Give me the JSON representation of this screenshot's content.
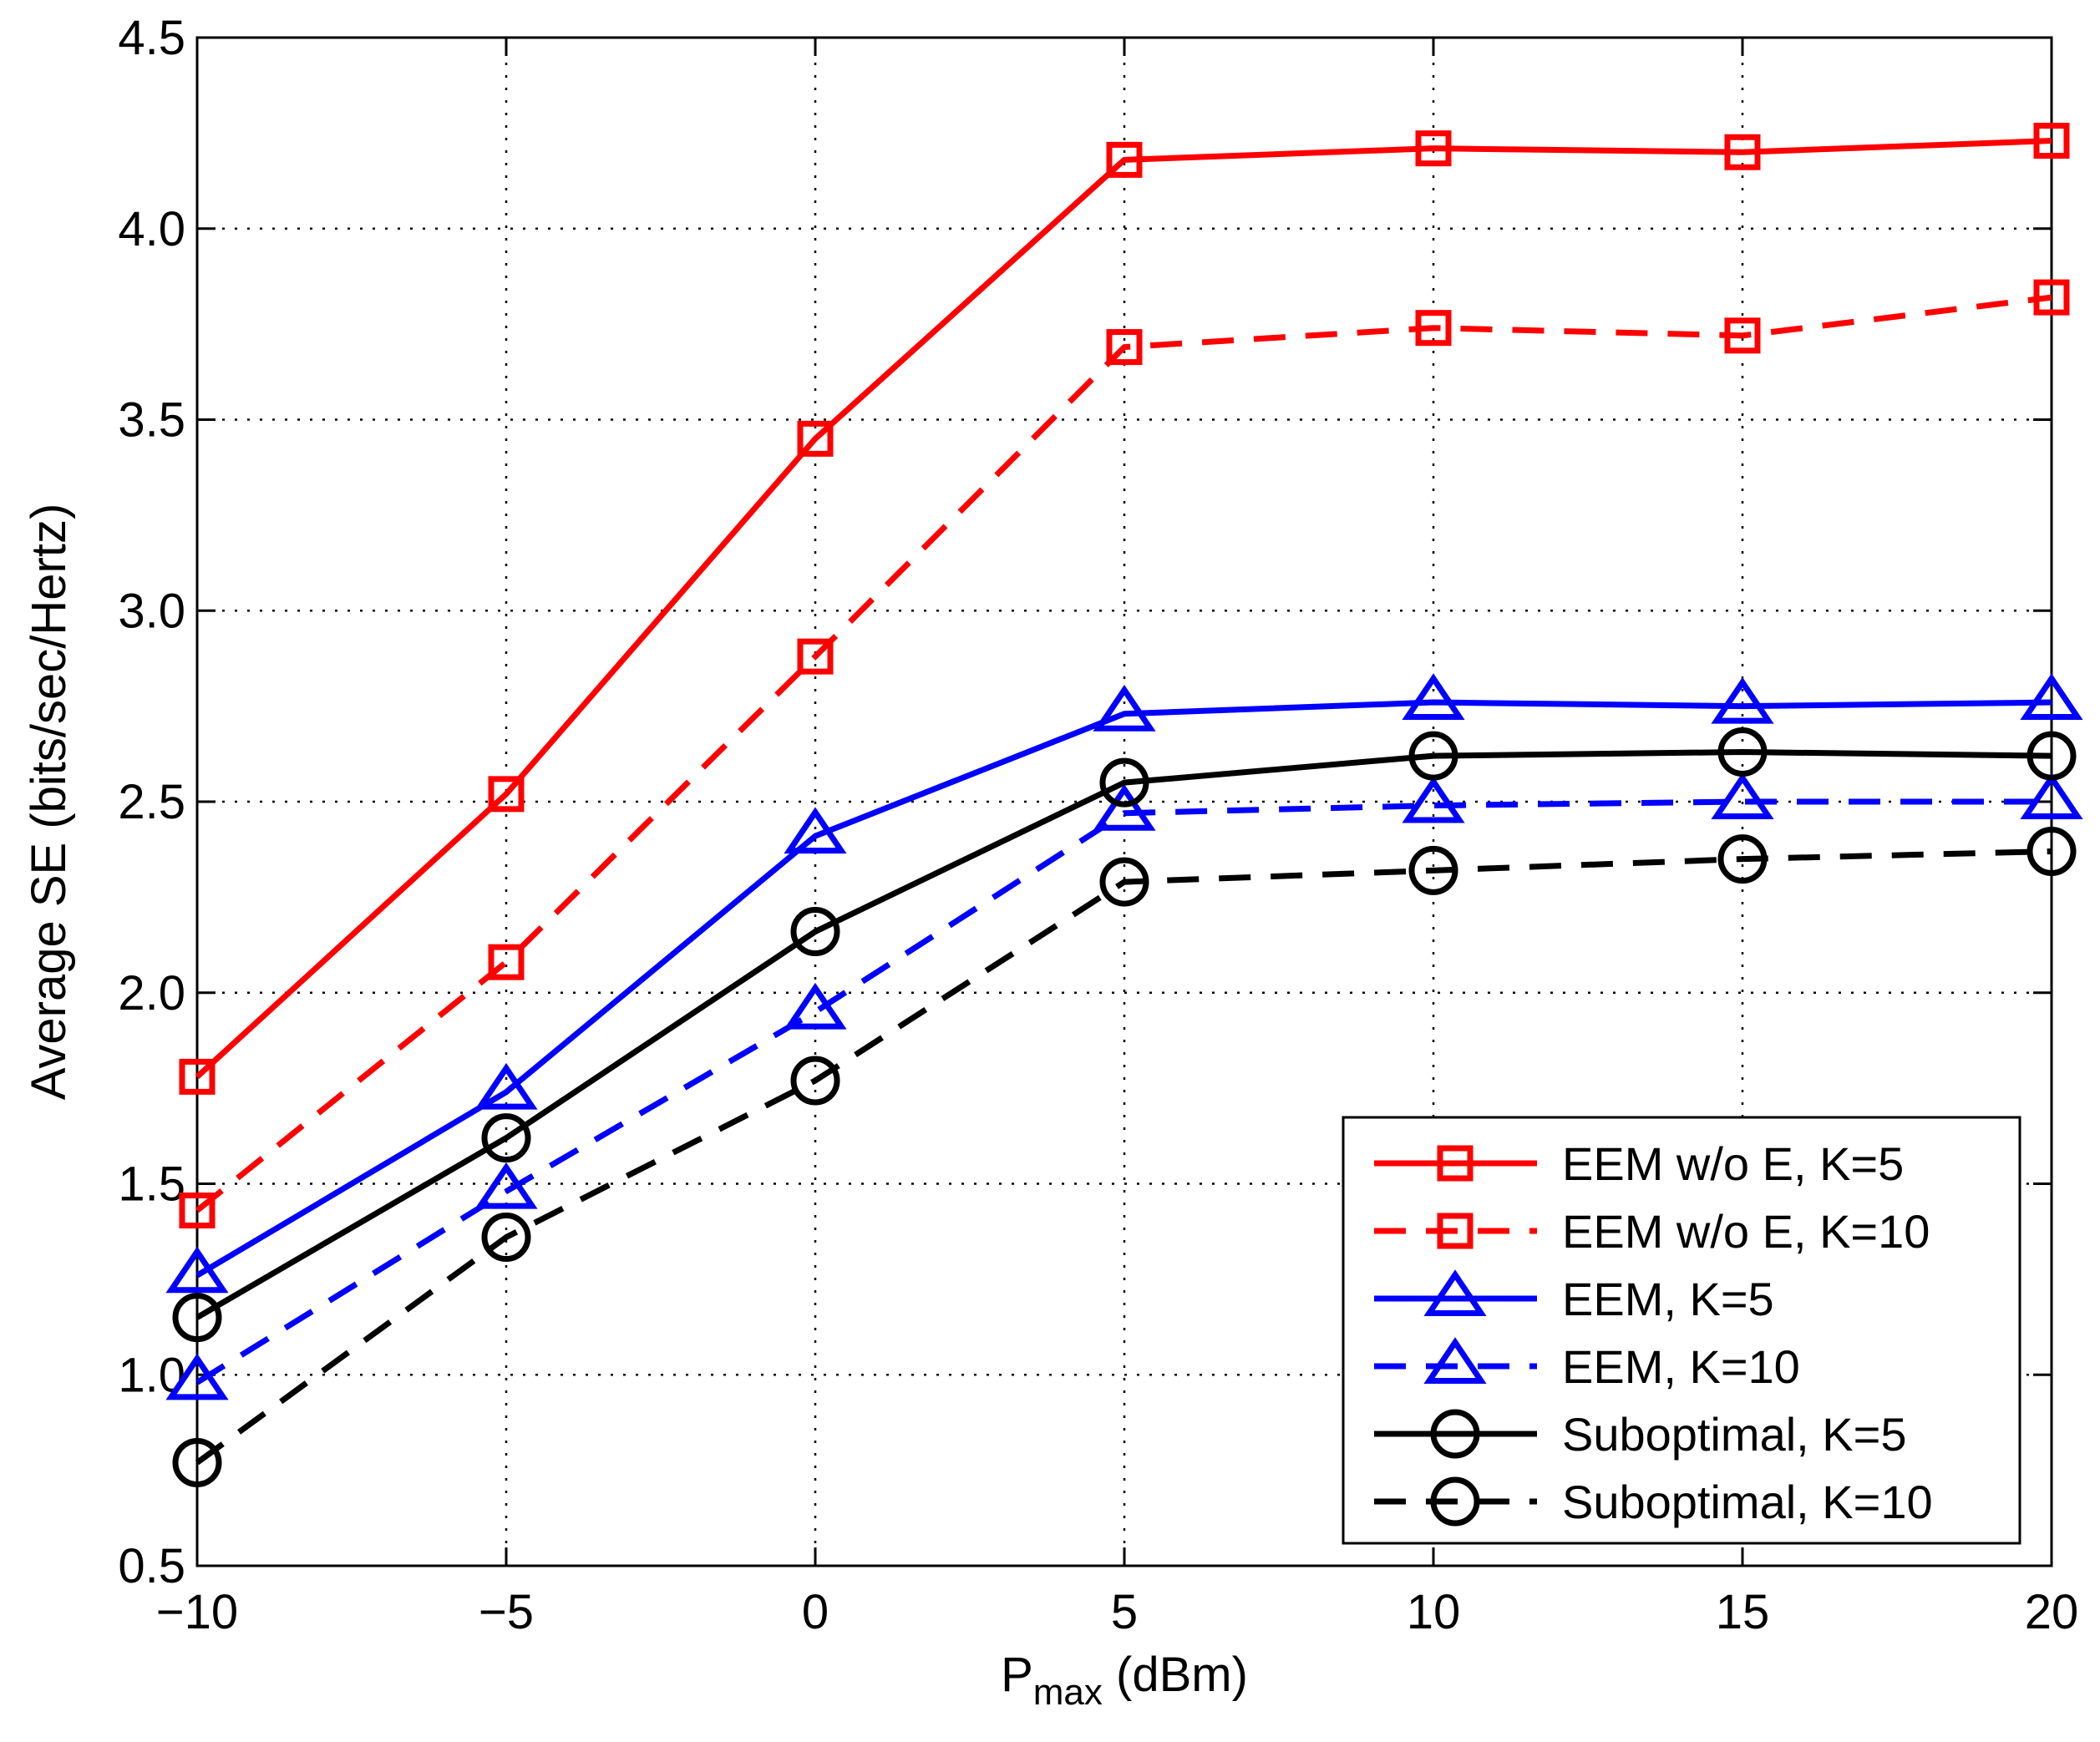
{
  "chart_data": {
    "type": "line",
    "title": "",
    "xlabel": "P",
    "xlabel_sub": "max",
    "xlabel_unit": " (dBm)",
    "ylabel": "Average SE (bits/sec/Hertz)",
    "xlim": [
      -10,
      20
    ],
    "ylim": [
      0.5,
      4.5
    ],
    "grid": true,
    "legend_position": "bottom-right",
    "x": [
      -10,
      -5,
      0,
      5,
      10,
      15,
      20
    ],
    "xticks": [
      "−10",
      "−5",
      "0",
      "5",
      "10",
      "15",
      "20"
    ],
    "yticks": [
      "0.5",
      "1.0",
      "1.5",
      "2.0",
      "2.5",
      "3.0",
      "3.5",
      "4.0",
      "4.5"
    ],
    "series": [
      {
        "name": "EEM w/o E, K=5",
        "color": "#ff0000",
        "dash": "solid",
        "marker": "square",
        "values": [
          1.78,
          2.52,
          3.45,
          4.18,
          4.21,
          4.2,
          4.23
        ]
      },
      {
        "name": "EEM w/o E, K=10",
        "color": "#ff0000",
        "dash": "dashed",
        "marker": "square",
        "values": [
          1.43,
          2.08,
          2.88,
          3.69,
          3.74,
          3.72,
          3.82
        ]
      },
      {
        "name": "EEM, K=5",
        "color": "#0000ff",
        "dash": "solid",
        "marker": "triangle",
        "values": [
          1.26,
          1.74,
          2.41,
          2.73,
          2.76,
          2.75,
          2.76
        ]
      },
      {
        "name": "EEM, K=10",
        "color": "#0000ff",
        "dash": "dashed",
        "marker": "triangle",
        "values": [
          0.98,
          1.48,
          1.95,
          2.47,
          2.49,
          2.5,
          2.5
        ]
      },
      {
        "name": "Suboptimal, K=5",
        "color": "#000000",
        "dash": "solid",
        "marker": "circle",
        "values": [
          1.15,
          1.62,
          2.16,
          2.55,
          2.62,
          2.63,
          2.62
        ]
      },
      {
        "name": "Suboptimal, K=10",
        "color": "#000000",
        "dash": "dashed",
        "marker": "circle",
        "values": [
          0.77,
          1.36,
          1.77,
          2.29,
          2.32,
          2.35,
          2.37
        ]
      }
    ]
  }
}
